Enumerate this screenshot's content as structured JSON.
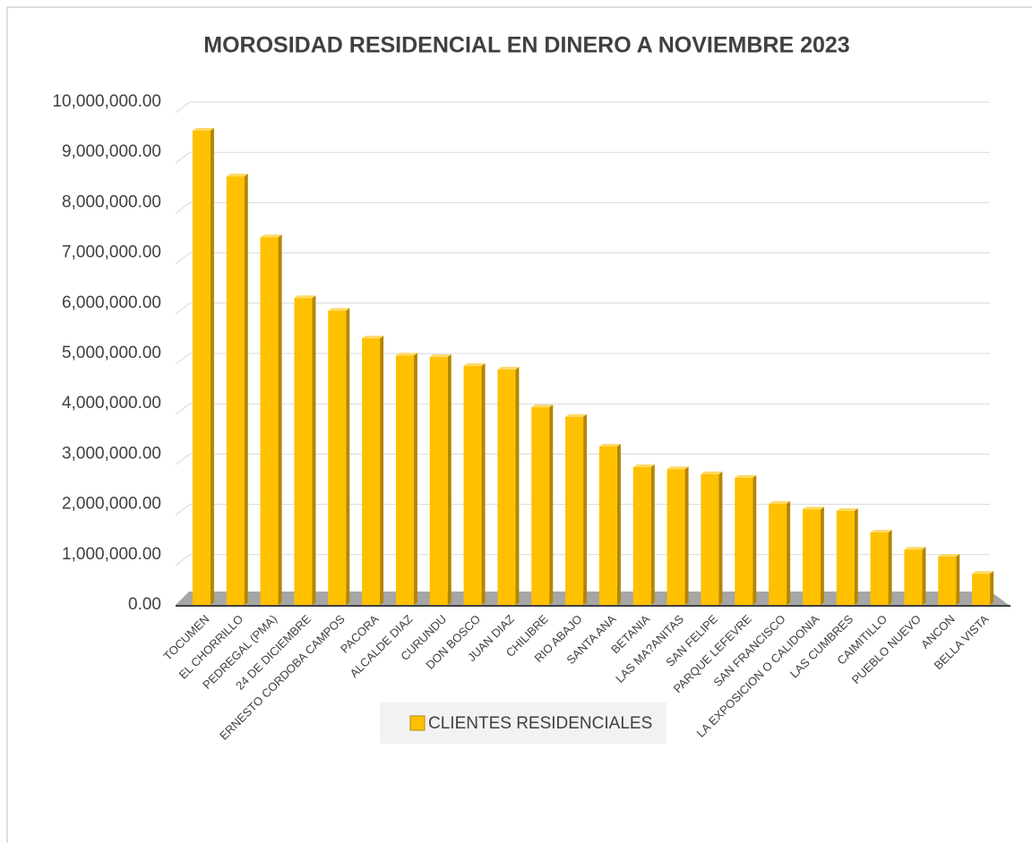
{
  "chart_data": {
    "type": "bar3d",
    "title": "MOROSIDAD RESIDENCIAL EN DINERO A NOVIEMBRE 2023",
    "categories": [
      "TOCUMEN",
      "EL CHORRILLO",
      "PEDREGAL (PMA)",
      "24 DE DICIEMBRE",
      "ERNESTO CORDOBA CAMPOS",
      "PACORA",
      "ALCALDE DIAZ",
      "CURUNDU",
      "DON BOSCO",
      "JUAN DIAZ",
      "CHILIBRE",
      "RIO ABAJO",
      "SANTA ANA",
      "BETANIA",
      "LAS MA?ANITAS",
      "SAN FELIPE",
      "PARQUE LEFEVRE",
      "SAN FRANCISCO",
      "LA EXPOSICION O CALIDONIA",
      "LAS CUMBRES",
      "CAIMITILLO",
      "PUEBLO NUEVO",
      "ANCON",
      "BELLA VISTA"
    ],
    "series": [
      {
        "name": "CLIENTES RESIDENCIALES",
        "color": "#FFC000",
        "values": [
          9430000,
          8520000,
          7310000,
          6100000,
          5850000,
          5300000,
          4960000,
          4930000,
          4750000,
          4680000,
          3930000,
          3740000,
          3150000,
          2740000,
          2700000,
          2600000,
          2530000,
          2010000,
          1900000,
          1870000,
          1440000,
          1100000,
          960000,
          620000
        ]
      }
    ],
    "ylim": [
      0,
      10000000
    ],
    "yticks": [
      {
        "value": 0,
        "label": "0.00"
      },
      {
        "value": 1000000,
        "label": "1,000,000.00"
      },
      {
        "value": 2000000,
        "label": "2,000,000.00"
      },
      {
        "value": 3000000,
        "label": "3,000,000.00"
      },
      {
        "value": 4000000,
        "label": "4,000,000.00"
      },
      {
        "value": 5000000,
        "label": "5,000,000.00"
      },
      {
        "value": 6000000,
        "label": "6,000,000.00"
      },
      {
        "value": 7000000,
        "label": "7,000,000.00"
      },
      {
        "value": 8000000,
        "label": "8,000,000.00"
      },
      {
        "value": 9000000,
        "label": "9,000,000.00"
      },
      {
        "value": 10000000,
        "label": "10,000,000.00"
      }
    ],
    "grid": true,
    "legend": "bottom"
  }
}
